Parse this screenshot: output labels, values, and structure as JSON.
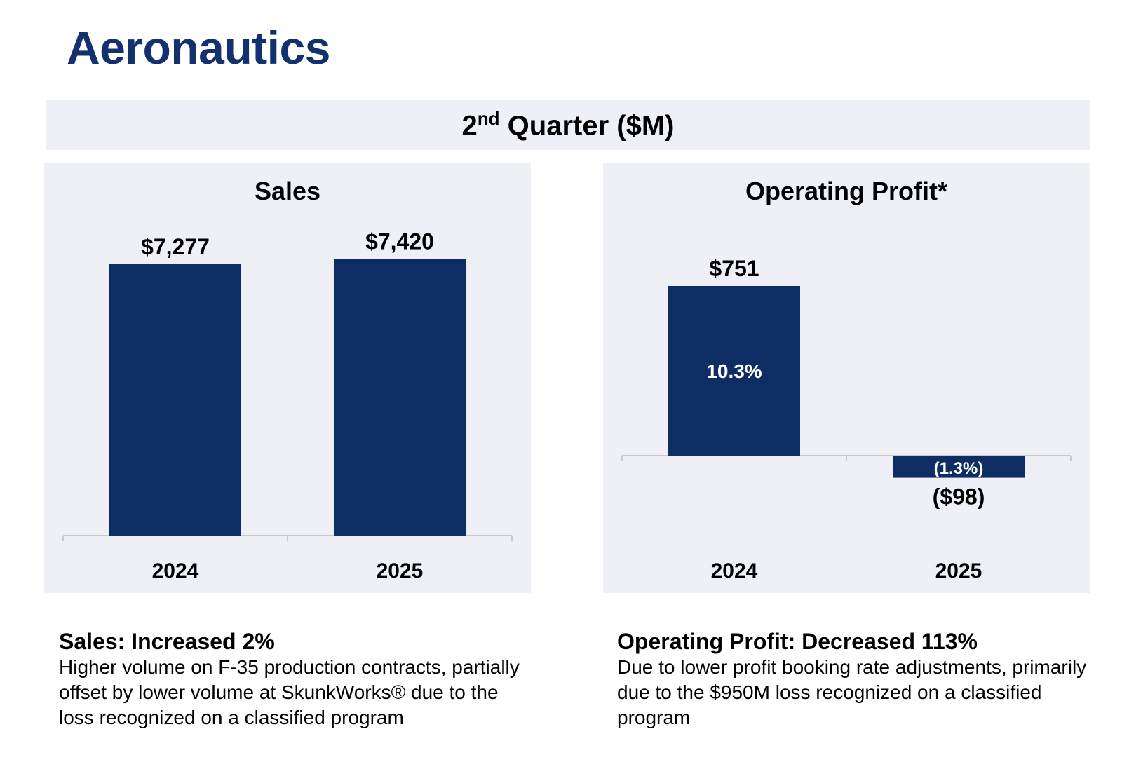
{
  "page": {
    "title": "Aeronautics",
    "quarter_base": "2",
    "quarter_suffix": "nd",
    "quarter_rest": " Quarter ($M)"
  },
  "colors": {
    "title": "#13316f",
    "bar": "#0f2d65",
    "panel_background": "#eef0f6",
    "axis": "#c7cad1"
  },
  "summaries": {
    "sales": {
      "heading": "Sales: Increased 2%",
      "text": "Higher volume on F-35 production contracts, partially offset by lower volume at SkunkWorks® due to the loss recognized on a classified program"
    },
    "profit": {
      "heading": "Operating Profit: Decreased 113%",
      "text": "Due to lower profit booking rate adjustments, primarily due to the $950M loss recognized on a classified program"
    }
  },
  "chart_data": [
    {
      "type": "bar",
      "title": "Sales",
      "categories": [
        "2024",
        "2025"
      ],
      "values": [
        7277,
        7420
      ],
      "value_labels": [
        "$7,277",
        "$7,420"
      ],
      "ylim": [
        0,
        8000
      ],
      "grid": false
    },
    {
      "type": "bar",
      "title": "Operating Profit*",
      "categories": [
        "2024",
        "2025"
      ],
      "values": [
        751,
        -98
      ],
      "value_labels": [
        "$751",
        "($98)"
      ],
      "margin_labels": [
        "10.3%",
        "(1.3%)"
      ],
      "ylim": [
        -400,
        950
      ],
      "grid": false
    }
  ]
}
